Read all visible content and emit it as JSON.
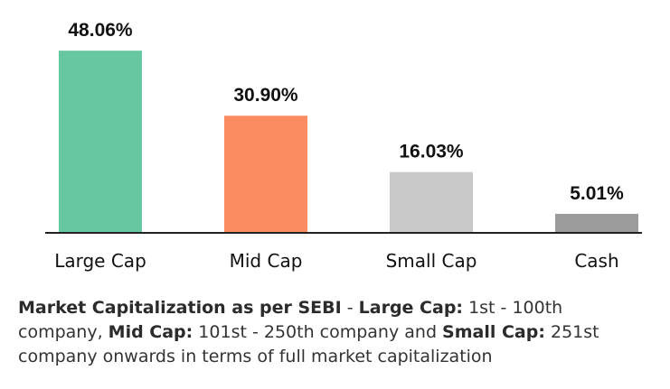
{
  "chart_data": {
    "type": "bar",
    "categories": [
      "Large Cap",
      "Mid Cap",
      "Small Cap",
      "Cash"
    ],
    "values": [
      48.06,
      30.9,
      16.03,
      5.01
    ],
    "value_labels": [
      "48.06%",
      "30.90%",
      "16.03%",
      "5.01%"
    ],
    "colors": [
      "#66c7a0",
      "#fb8c62",
      "#c9c9c9",
      "#9b9b9b"
    ],
    "ylim": [
      0,
      50
    ],
    "grid": false,
    "legend": "none"
  },
  "footnote": {
    "part1_bold": "Market Capitalization as per SEBI",
    "part2": " - ",
    "part3_bold": "Large Cap:",
    "part4": " 1st - 100th company, ",
    "part5_bold": "Mid Cap:",
    "part6": " 101st - 250th company and ",
    "part7_bold": "Small Cap:",
    "part8": " 251st company onwards in terms of full market capitalization"
  }
}
